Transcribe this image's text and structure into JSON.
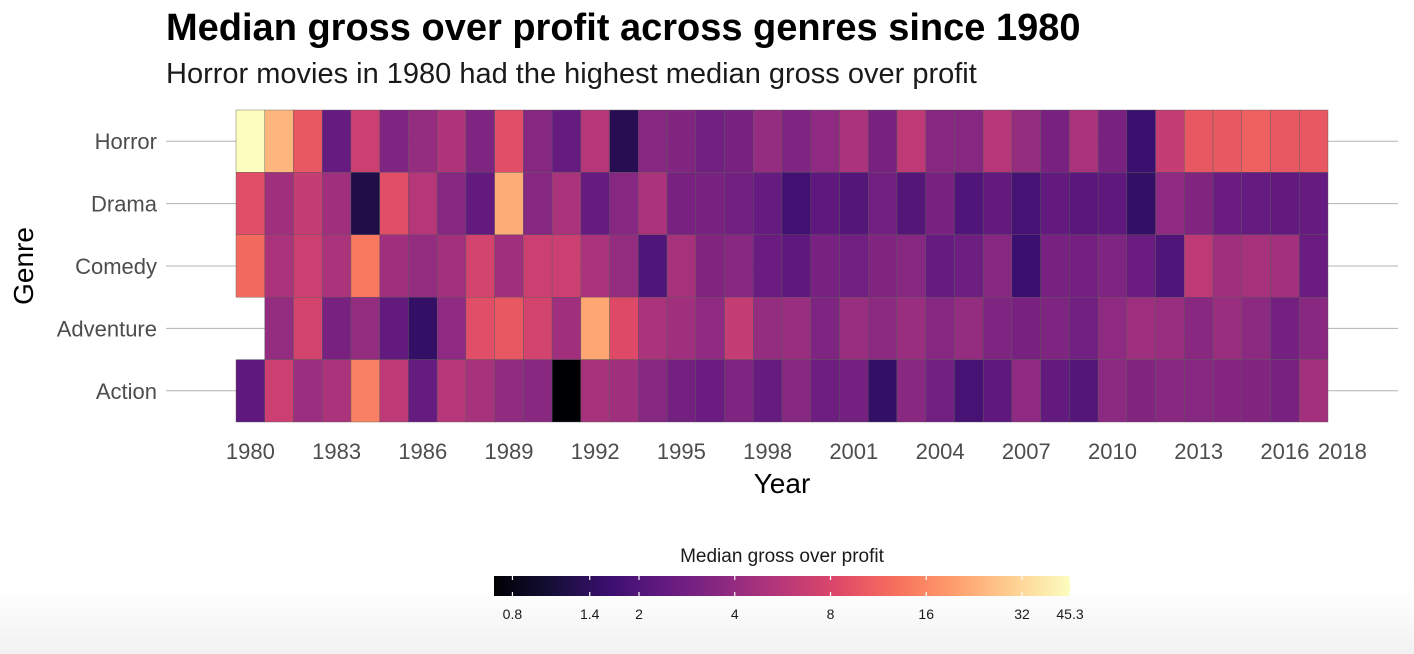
{
  "chart_data": {
    "type": "heatmap",
    "title": "Median gross over profit across genres since 1980",
    "subtitle": "Horror movies in 1980 had the highest median gross over profit",
    "xlabel": "Year",
    "ylabel": "Genre",
    "x_tick_labels": [
      "1980",
      "1983",
      "1986",
      "1989",
      "1992",
      "1995",
      "1998",
      "2001",
      "2004",
      "2007",
      "2010",
      "2013",
      "2016",
      "2018"
    ],
    "x_tick_years": [
      1980,
      1983,
      1986,
      1989,
      1992,
      1995,
      1998,
      2001,
      2004,
      2007,
      2010,
      2013,
      2016,
      2018
    ],
    "years": [
      1980,
      1981,
      1982,
      1983,
      1984,
      1985,
      1986,
      1987,
      1988,
      1989,
      1990,
      1991,
      1992,
      1993,
      1994,
      1995,
      1996,
      1997,
      1998,
      1999,
      2000,
      2001,
      2002,
      2003,
      2004,
      2005,
      2006,
      2007,
      2008,
      2009,
      2010,
      2011,
      2012,
      2013,
      2014,
      2015,
      2016,
      2017
    ],
    "genres": [
      "Horror",
      "Drama",
      "Comedy",
      "Adventure",
      "Action"
    ],
    "scale": "log",
    "colormap": "magma",
    "value_range": [
      0.7,
      45.3
    ],
    "legend_title": "Median gross over profit",
    "legend_ticks": [
      0.8,
      1.4,
      2,
      4,
      8,
      16,
      32,
      45.3
    ],
    "legend_tick_labels": [
      "0.8",
      "1.4",
      "2",
      "4",
      "8",
      "16",
      "32",
      "45.3"
    ],
    "legend_position": "bottom",
    "grid": true,
    "values": {
      "Horror": [
        45.3,
        24,
        10,
        2.5,
        7,
        3.2,
        4,
        5.2,
        3.2,
        9,
        3.5,
        2.5,
        5.5,
        1.3,
        3.5,
        3.3,
        2.8,
        3,
        4,
        3.2,
        3.8,
        5,
        3,
        6,
        3.5,
        3.5,
        5.5,
        4,
        3,
        5,
        3,
        1.6,
        6.5,
        10,
        10,
        11,
        10,
        10
      ],
      "Drama": [
        9,
        4.5,
        6.5,
        4.5,
        1.2,
        9,
        5.5,
        3.5,
        2.4,
        22,
        3.5,
        5,
        2.5,
        3.5,
        5,
        3,
        3,
        2.8,
        2.5,
        1.7,
        2.3,
        2.1,
        2.8,
        2.1,
        3,
        2,
        2.4,
        1.8,
        2.4,
        2.2,
        2.3,
        1.5,
        3.8,
        3.3,
        2.6,
        2.5,
        2.4,
        2.5
      ],
      "Comedy": [
        12,
        5,
        7,
        5,
        14,
        4.5,
        4,
        4.6,
        7.5,
        4.5,
        7,
        7,
        5,
        4,
        2,
        4.8,
        3.3,
        3.5,
        2.6,
        2.3,
        3,
        2.8,
        3.3,
        3.5,
        2.5,
        2.7,
        3.5,
        1.6,
        3,
        2.9,
        3.2,
        2.6,
        2,
        6,
        4.5,
        4.8,
        4.6,
        2.6
      ],
      "Adventure": [
        null,
        4,
        7.5,
        3,
        4,
        2.4,
        1.5,
        3.8,
        9,
        10,
        7.5,
        4.5,
        21,
        8.5,
        5,
        4.5,
        3.8,
        6.5,
        4,
        4.2,
        3.2,
        4.2,
        3.7,
        4.2,
        3.5,
        4,
        3.2,
        3,
        3.2,
        2.8,
        3.8,
        4.4,
        4.2,
        3.6,
        4.2,
        3.7,
        2.9,
        3.6
      ],
      "Action": [
        2.3,
        7,
        4.3,
        5,
        15,
        6,
        2.5,
        5.5,
        4.8,
        3.9,
        3.6,
        0.7,
        4.8,
        4.5,
        3.5,
        2.9,
        2.6,
        3.2,
        2.5,
        3.5,
        2.7,
        2.9,
        1.5,
        3.6,
        2.8,
        1.8,
        2.3,
        3.8,
        2.4,
        2.1,
        3.7,
        3.3,
        3.6,
        3.5,
        3.4,
        3.3,
        3,
        4.6
      ]
    }
  }
}
